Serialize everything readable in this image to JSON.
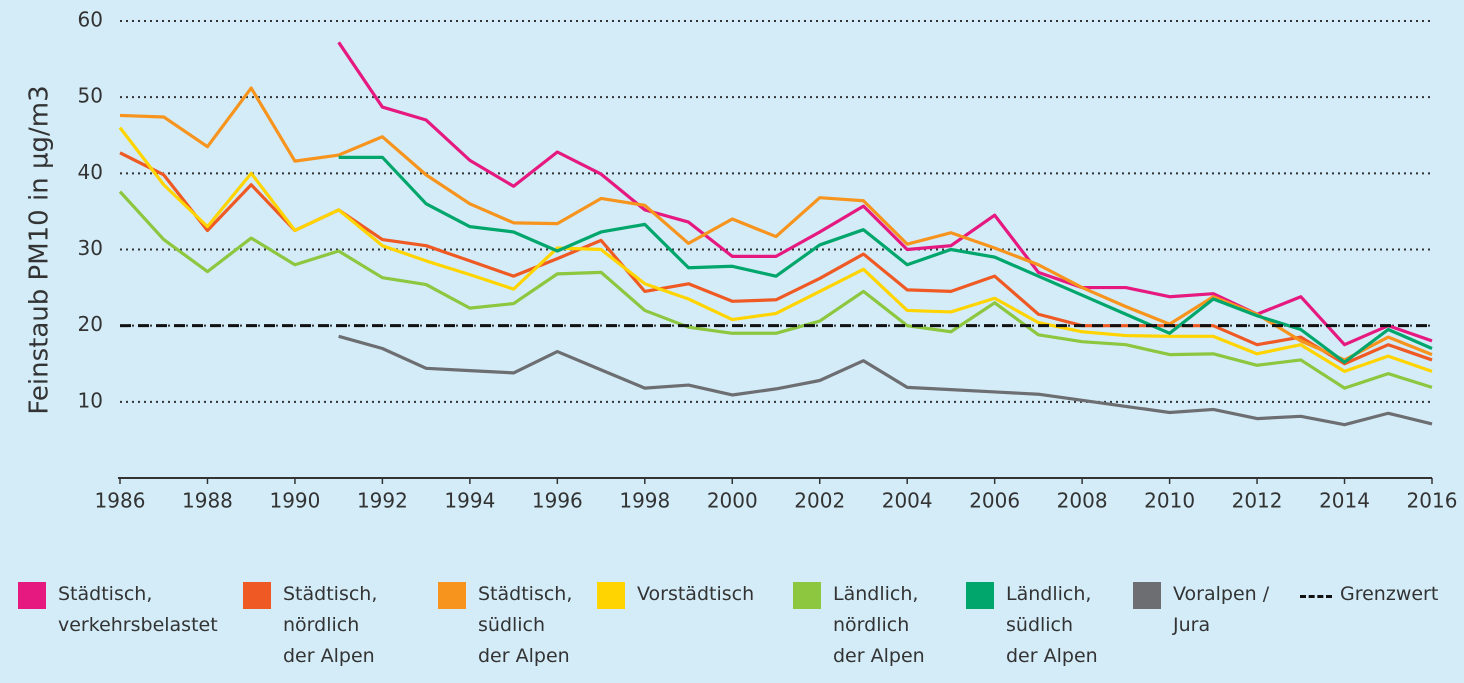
{
  "chart_data": {
    "type": "line",
    "ylabel": "Feinstaub PM10 in µg/m3",
    "x": [
      1986,
      1987,
      1988,
      1989,
      1990,
      1991,
      1992,
      1993,
      1994,
      1995,
      1996,
      1997,
      1998,
      1999,
      2000,
      2001,
      2002,
      2003,
      2004,
      2005,
      2006,
      2007,
      2008,
      2009,
      2010,
      2011,
      2012,
      2013,
      2014,
      2015,
      2016
    ],
    "xlim": [
      1986,
      2016
    ],
    "xticks": [
      1986,
      1988,
      1990,
      1992,
      1994,
      1996,
      1998,
      2000,
      2002,
      2004,
      2006,
      2008,
      2010,
      2012,
      2014,
      2016
    ],
    "ylim": [
      0,
      60
    ],
    "yticks": [
      10,
      20,
      30,
      40,
      50,
      60
    ],
    "grid": true,
    "threshold": {
      "value": 20,
      "label": "Grenzwert",
      "color": "#111111"
    },
    "series": [
      {
        "name": "Städtisch,\nverkehrsbelastet",
        "color": "#e5197f",
        "values": [
          null,
          null,
          null,
          null,
          null,
          57.2,
          48.7,
          47,
          41.7,
          38.3,
          42.8,
          39.9,
          35.2,
          33.6,
          29.1,
          29.1,
          32.3,
          35.7,
          30,
          30.5,
          34.5,
          27,
          25,
          25,
          23.8,
          24.2,
          21.5,
          23.8,
          17.5,
          20,
          18
        ]
      },
      {
        "name": "Städtisch,\nnördlich\nder Alpen",
        "color": "#ef5a24",
        "values": [
          42.7,
          39.8,
          32.5,
          38.5,
          32.5,
          35.2,
          31.3,
          30.5,
          28.5,
          26.5,
          28.8,
          31.2,
          24.5,
          25.5,
          23.2,
          23.4,
          26.2,
          29.4,
          24.7,
          24.5,
          26.5,
          21.5,
          20,
          20,
          20,
          20,
          17.5,
          18.5,
          15,
          17.5,
          15.5
        ]
      },
      {
        "name": "Städtisch,\nsüdlich\nder Alpen",
        "color": "#f7941d",
        "values": [
          47.6,
          47.4,
          43.5,
          51.2,
          41.6,
          42.4,
          44.8,
          39.8,
          36,
          33.5,
          33.4,
          36.7,
          35.8,
          30.8,
          34,
          31.7,
          36.8,
          36.4,
          30.7,
          32.2,
          30.2,
          28,
          25,
          22.5,
          20.2,
          23.8,
          21.5,
          18,
          15.5,
          18.5,
          16.2
        ]
      },
      {
        "name": "Vorstädtisch",
        "color": "#ffd400",
        "values": [
          46,
          38.5,
          33,
          40,
          32.5,
          35.2,
          30.5,
          28.5,
          26.7,
          24.8,
          30.2,
          30,
          25.5,
          23.5,
          20.8,
          21.6,
          24.5,
          27.4,
          22,
          21.8,
          23.6,
          20.4,
          19.2,
          18.7,
          18.6,
          18.6,
          16.3,
          17.5,
          14,
          16,
          14
        ]
      },
      {
        "name": "Ländlich,\nnördlich\nder Alpen",
        "color": "#8dc63f",
        "values": [
          37.6,
          31.3,
          27.1,
          31.5,
          28,
          29.8,
          26.3,
          25.4,
          22.3,
          22.9,
          26.8,
          27,
          22,
          19.8,
          19,
          19,
          20.6,
          24.5,
          20,
          19.2,
          23,
          18.8,
          17.9,
          17.5,
          16.2,
          16.3,
          14.8,
          15.5,
          11.8,
          13.7,
          11.9
        ]
      },
      {
        "name": "Ländlich,\nsüdlich\nder Alpen",
        "color": "#00a66b",
        "values": [
          null,
          null,
          null,
          null,
          null,
          42.1,
          42.1,
          36,
          33,
          32.3,
          29.8,
          32.3,
          33.3,
          27.6,
          27.8,
          26.5,
          30.6,
          32.6,
          28,
          30,
          29,
          26.5,
          24,
          21.5,
          19,
          23.5,
          21.3,
          19.5,
          15.2,
          19.5,
          17
        ]
      },
      {
        "name": "Voralpen /\nJura",
        "color": "#6d6e71",
        "values": [
          null,
          null,
          null,
          null,
          null,
          18.6,
          17,
          14.4,
          14.1,
          13.8,
          16.6,
          14.2,
          11.8,
          12.2,
          10.9,
          11.7,
          12.8,
          15.4,
          11.9,
          11.6,
          11.3,
          11,
          10.2,
          9.4,
          8.6,
          9,
          7.8,
          8.1,
          7,
          8.5,
          7.1
        ]
      }
    ]
  }
}
